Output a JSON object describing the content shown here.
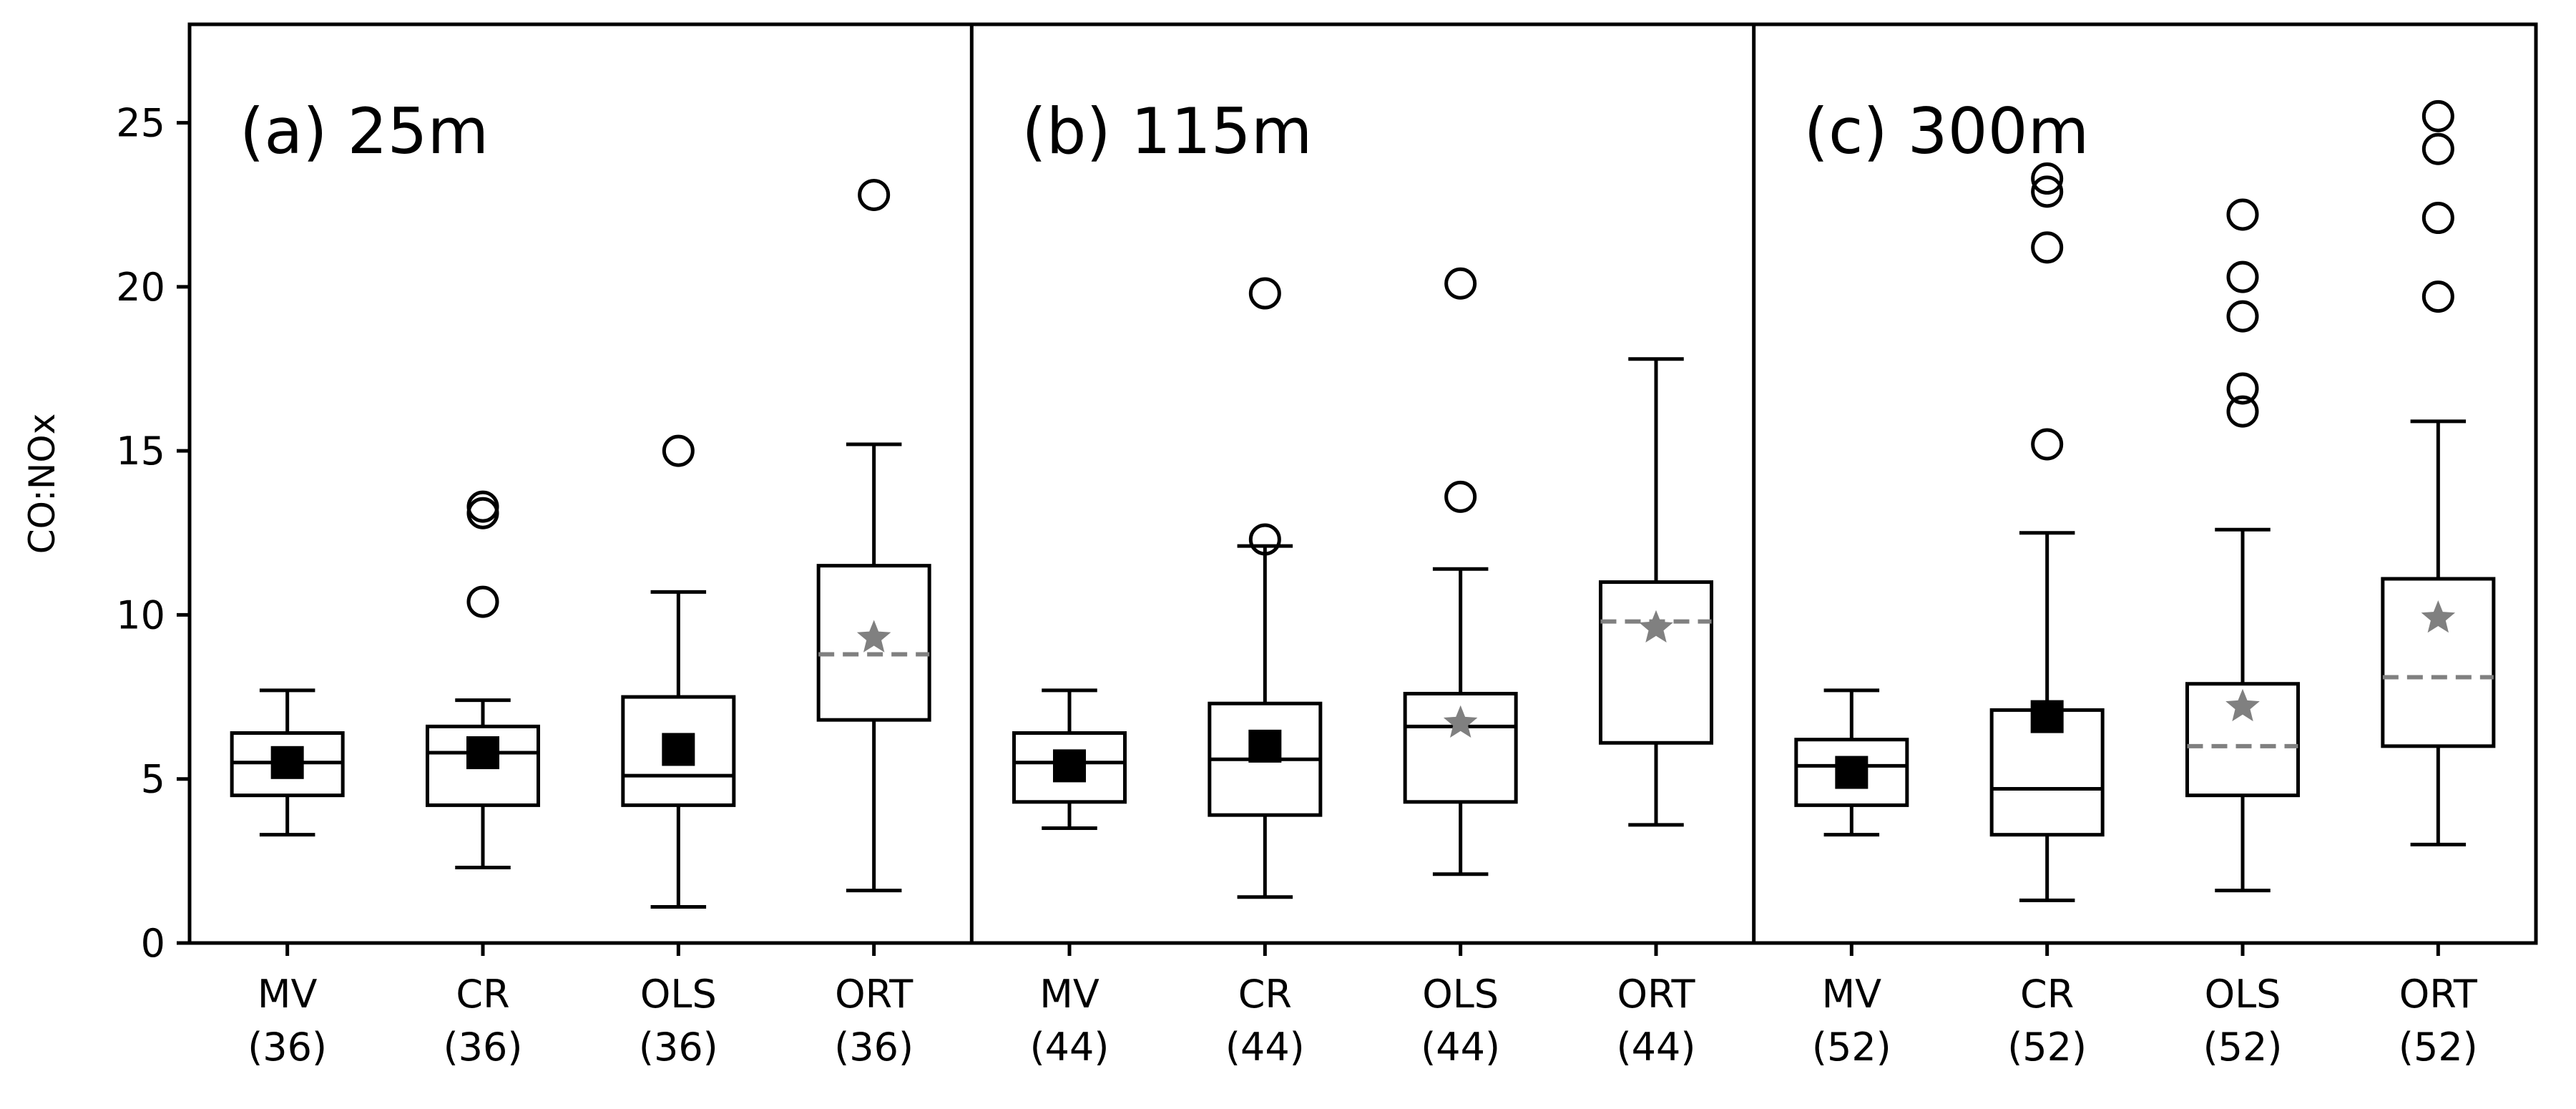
{
  "chart_data": {
    "type": "box",
    "ylabel": "CO:NOx",
    "ylim": [
      0,
      28
    ],
    "yticks": [
      0,
      5,
      10,
      15,
      20,
      25
    ],
    "categories": [
      "MV",
      "CR",
      "OLS",
      "ORT"
    ],
    "colors": {
      "mean_square": "#000000",
      "mean_star": "#808080",
      "dashed_median": "#808080"
    },
    "panels": [
      {
        "title": "(a) 25m",
        "boxes": [
          {
            "label": "MV",
            "n": "(36)",
            "whislo": 3.3,
            "q1": 4.5,
            "med": 5.5,
            "q3": 6.4,
            "whishi": 7.7,
            "mean": 5.5,
            "mean_marker": "square",
            "median_style": "solid",
            "outliers": []
          },
          {
            "label": "CR",
            "n": "(36)",
            "whislo": 2.3,
            "q1": 4.2,
            "med": 5.8,
            "q3": 6.6,
            "whishi": 7.4,
            "mean": 5.8,
            "mean_marker": "square",
            "median_style": "solid",
            "outliers": [
              10.4,
              13.1,
              13.3
            ]
          },
          {
            "label": "OLS",
            "n": "(36)",
            "whislo": 1.1,
            "q1": 4.2,
            "med": 5.1,
            "q3": 7.5,
            "whishi": 10.7,
            "mean": 5.9,
            "mean_marker": "square",
            "median_style": "solid",
            "outliers": [
              15.0
            ]
          },
          {
            "label": "ORT",
            "n": "(36)",
            "whislo": 1.6,
            "q1": 6.8,
            "med": 8.8,
            "q3": 11.5,
            "whishi": 15.2,
            "mean": 9.3,
            "mean_marker": "star",
            "median_style": "dashed",
            "outliers": [
              22.8
            ]
          }
        ]
      },
      {
        "title": "(b) 115m",
        "boxes": [
          {
            "label": "MV",
            "n": "(44)",
            "whislo": 3.5,
            "q1": 4.3,
            "med": 5.5,
            "q3": 6.4,
            "whishi": 7.7,
            "mean": 5.4,
            "mean_marker": "square",
            "median_style": "solid",
            "outliers": []
          },
          {
            "label": "CR",
            "n": "(44)",
            "whislo": 1.4,
            "q1": 3.9,
            "med": 5.6,
            "q3": 7.3,
            "whishi": 12.1,
            "mean": 6.0,
            "mean_marker": "square",
            "median_style": "solid",
            "outliers": [
              12.3,
              19.8
            ]
          },
          {
            "label": "OLS",
            "n": "(44)",
            "whislo": 2.1,
            "q1": 4.3,
            "med": 6.6,
            "q3": 7.6,
            "whishi": 11.4,
            "mean": 6.7,
            "mean_marker": "star",
            "median_style": "solid",
            "outliers": [
              13.6,
              20.1
            ]
          },
          {
            "label": "ORT",
            "n": "(44)",
            "whislo": 3.6,
            "q1": 6.1,
            "med": 9.8,
            "q3": 11.0,
            "whishi": 17.8,
            "mean": 9.6,
            "mean_marker": "star",
            "median_style": "dashed",
            "outliers": []
          }
        ]
      },
      {
        "title": "(c) 300m",
        "boxes": [
          {
            "label": "MV",
            "n": "(52)",
            "whislo": 3.3,
            "q1": 4.2,
            "med": 5.4,
            "q3": 6.2,
            "whishi": 7.7,
            "mean": 5.2,
            "mean_marker": "square",
            "median_style": "solid",
            "outliers": []
          },
          {
            "label": "CR",
            "n": "(52)",
            "whislo": 1.3,
            "q1": 3.3,
            "med": 4.7,
            "q3": 7.1,
            "whishi": 12.5,
            "mean": 6.9,
            "mean_marker": "square",
            "median_style": "solid",
            "outliers": [
              15.2,
              21.2,
              22.9,
              23.3
            ]
          },
          {
            "label": "OLS",
            "n": "(52)",
            "whislo": 1.6,
            "q1": 4.5,
            "med": 6.0,
            "q3": 7.9,
            "whishi": 12.6,
            "mean": 7.2,
            "mean_marker": "star",
            "median_style": "dashed",
            "outliers": [
              16.2,
              16.9,
              19.1,
              20.3,
              22.2
            ]
          },
          {
            "label": "ORT",
            "n": "(52)",
            "whislo": 3.0,
            "q1": 6.0,
            "med": 8.1,
            "q3": 11.1,
            "whishi": 15.9,
            "mean": 9.9,
            "mean_marker": "star",
            "median_style": "dashed",
            "outliers": [
              19.7,
              22.1,
              24.2,
              25.2
            ]
          }
        ]
      }
    ]
  }
}
